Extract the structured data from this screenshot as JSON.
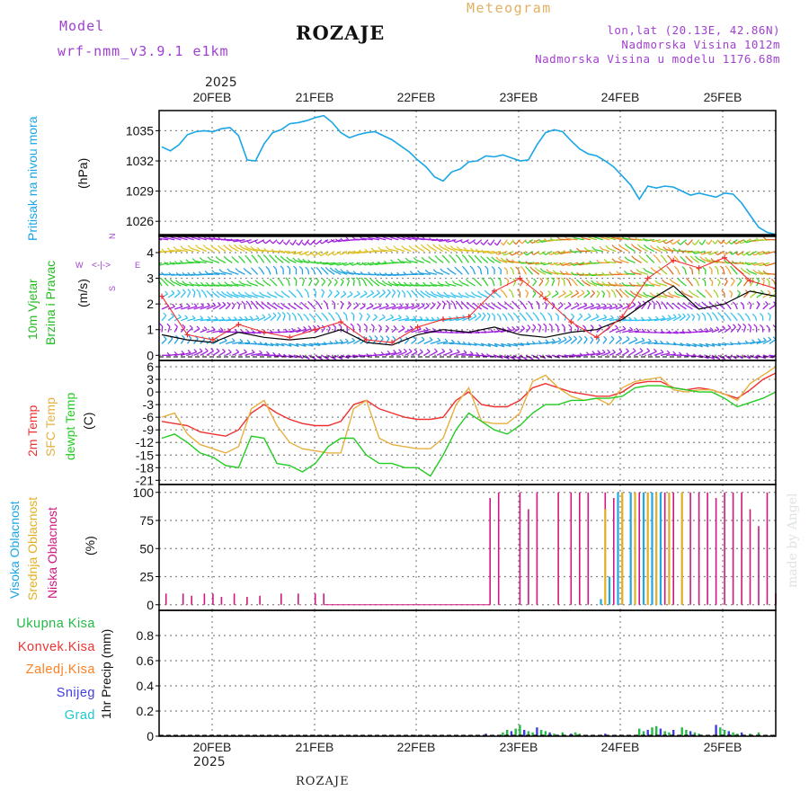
{
  "header": {
    "model_label": "Model",
    "model_name": "wrf-nmm_v3.9.1 e1km",
    "title": "ROZAJE",
    "meteogram": "Meteogram",
    "coords": "lon,lat (20.13E, 42.86N)",
    "altitude": "Nadmorska Visina 1012m",
    "model_altitude": "Nadmorska Visina u modelu 1176.68m"
  },
  "time_axis": {
    "year": "2025",
    "days": [
      "20FEB",
      "21FEB",
      "22FEB",
      "23FEB",
      "24FEB",
      "25FEB"
    ],
    "bottom_year": "2025"
  },
  "footer": {
    "station": "ROZAJE",
    "credit": "made by Angel"
  },
  "panels": {
    "pressure": {
      "label_main": "Pritisak na nivou mora",
      "unit": "(hPa)"
    },
    "wind": {
      "label_line1": "10m Vjetar",
      "label_line2": "Brzina i Pravac",
      "unit": "(m/s)",
      "compass": {
        "n": "N",
        "s": "S",
        "e": "E",
        "w": "W"
      }
    },
    "temp": {
      "label_2m": "2m Temp",
      "label_sfc": "SFC Temp",
      "label_dew": "dewpt Temp",
      "unit": "(C)"
    },
    "cloud": {
      "label_high": "Visoka Oblacnost",
      "label_mid": "Srednja Oblacnost",
      "label_low": "Niska Oblacnost",
      "unit": "(%)"
    },
    "precip": {
      "legend_total": "Ukupna Kisa",
      "legend_conv": "Konvek.Kisa",
      "legend_frz": "Zaledj.Kisa",
      "legend_snow": "Snijeg",
      "legend_grad": "Grad",
      "label": "1hr Precip (mm)"
    }
  },
  "colors": {
    "pressure": "#1aa6e6",
    "temp2m": "#ee3030",
    "sfc": "#e6b040",
    "dew": "#22cc22",
    "cloud_high": "#20a8e0",
    "cloud_mid": "#e0b020",
    "cloud_low": "#d01880",
    "precip_total": "#22bb44",
    "precip_conv": "#ee3333",
    "precip_frz": "#ff8020",
    "precip_snow": "#4040e0",
    "precip_grad": "#20c8d0",
    "wind_gust": "#ee3030",
    "wind_speed": "#000000"
  },
  "chart_data": [
    {
      "type": "line",
      "title": "Pritisak na nivou mora",
      "ylabel": "(hPa)",
      "ylim": [
        1024.5,
        1037
      ],
      "yticks": [
        1026,
        1029,
        1032,
        1035
      ],
      "xlim_hours": [
        0,
        144
      ],
      "series": [
        {
          "name": "Pritisak na nivou mora",
          "x": [
            0,
            2,
            4,
            6,
            8,
            10,
            12,
            14,
            16,
            18,
            20,
            22,
            24,
            26,
            28,
            30,
            32,
            34,
            36,
            38,
            40,
            42,
            44,
            46,
            48,
            50,
            52,
            54,
            56,
            58,
            60,
            62,
            64,
            66,
            68,
            70,
            72,
            74,
            76,
            78,
            80,
            82,
            84,
            86,
            88,
            90,
            92,
            94,
            96,
            98,
            100,
            102,
            104,
            106,
            108,
            110,
            112,
            114,
            116,
            118,
            120,
            122,
            124,
            126,
            128,
            130,
            132,
            134,
            136,
            138,
            140,
            142,
            144
          ],
          "y": [
            1033.4,
            1033.0,
            1033.6,
            1034.6,
            1034.9,
            1035.0,
            1034.9,
            1035.2,
            1035.3,
            1034.5,
            1032.1,
            1032.0,
            1033.7,
            1034.8,
            1035.1,
            1035.7,
            1035.8,
            1036.0,
            1036.3,
            1036.5,
            1035.8,
            1034.8,
            1034.3,
            1034.6,
            1034.8,
            1034.9,
            1034.5,
            1034.1,
            1033.5,
            1032.9,
            1032.1,
            1031.4,
            1030.4,
            1030.0,
            1030.9,
            1031.2,
            1031.9,
            1032.0,
            1032.5,
            1032.4,
            1032.6,
            1032.3,
            1032.0,
            1032.1,
            1033.6,
            1034.8,
            1035.1,
            1034.9,
            1034.0,
            1033.2,
            1032.7,
            1032.5,
            1032.0,
            1031.4,
            1030.5,
            1029.6,
            1028.2,
            1029.5,
            1029.3,
            1029.5,
            1029.4,
            1029.0,
            1028.6,
            1028.8,
            1028.6,
            1028.4,
            1028.8,
            1028.7,
            1027.8,
            1026.6,
            1025.4,
            1024.9,
            1024.7
          ]
        }
      ]
    },
    {
      "type": "line",
      "title": "10m Vjetar Brzina i Pravac",
      "ylabel": "(m/s)",
      "ylim": [
        -0.2,
        4.7
      ],
      "yticks": [
        0,
        1,
        2,
        3,
        4
      ],
      "arrow_rows": [
        0.0,
        0.45,
        0.9,
        1.35,
        1.8,
        2.25,
        2.7,
        3.15,
        3.6,
        4.05,
        4.5
      ],
      "series": [
        {
          "name": "speed",
          "x": [
            0,
            6,
            12,
            18,
            24,
            30,
            36,
            42,
            48,
            54,
            60,
            66,
            72,
            78,
            84,
            90,
            96,
            102,
            108,
            114,
            120,
            126,
            132,
            138,
            144
          ],
          "y": [
            0.8,
            0.6,
            0.5,
            0.9,
            0.7,
            0.6,
            0.7,
            1.0,
            0.5,
            0.4,
            0.8,
            1.0,
            0.9,
            1.1,
            0.8,
            0.7,
            0.9,
            1.0,
            1.4,
            2.1,
            2.7,
            1.8,
            2.0,
            2.5,
            2.3
          ]
        },
        {
          "name": "gust",
          "x": [
            0,
            6,
            12,
            18,
            24,
            30,
            36,
            42,
            48,
            54,
            60,
            66,
            72,
            78,
            84,
            90,
            96,
            102,
            108,
            114,
            120,
            126,
            132,
            138,
            144
          ],
          "y": [
            2.3,
            0.8,
            0.6,
            1.2,
            0.9,
            0.7,
            1.0,
            1.3,
            0.6,
            0.5,
            1.1,
            1.4,
            1.5,
            2.5,
            3.0,
            2.2,
            1.3,
            0.7,
            1.5,
            3.0,
            3.7,
            3.4,
            3.8,
            2.9,
            2.6
          ]
        }
      ]
    },
    {
      "type": "line",
      "title": "2m Temp / SFC Temp / dewpt Temp",
      "ylabel": "(C)",
      "ylim": [
        -22,
        7.5
      ],
      "yticks": [
        6,
        3,
        0,
        -3,
        -6,
        -9,
        -12,
        -15,
        -18,
        -21
      ],
      "series": [
        {
          "name": "2m Temp",
          "x": [
            0,
            3,
            6,
            9,
            12,
            15,
            18,
            21,
            24,
            27,
            30,
            33,
            36,
            39,
            42,
            45,
            48,
            51,
            54,
            57,
            60,
            63,
            66,
            69,
            72,
            75,
            78,
            81,
            84,
            87,
            90,
            93,
            96,
            99,
            102,
            105,
            108,
            111,
            114,
            117,
            120,
            123,
            126,
            129,
            132,
            135,
            138,
            141,
            144
          ],
          "y": [
            -7,
            -7.5,
            -8,
            -9.5,
            -10,
            -10.5,
            -9,
            -5,
            -3,
            -5,
            -6.5,
            -7.5,
            -8,
            -8,
            -7,
            -3,
            -2,
            -4,
            -5,
            -6,
            -6.5,
            -6.5,
            -6,
            -2,
            0,
            -3,
            -3.5,
            -3.5,
            -2,
            1,
            2,
            1,
            0,
            -0.5,
            -1,
            -1,
            0,
            2,
            2.5,
            2.5,
            1,
            0.5,
            1,
            0.5,
            -0.5,
            -1.5,
            0.5,
            3,
            4.5
          ]
        },
        {
          "name": "SFC Temp",
          "x": [
            0,
            3,
            6,
            9,
            12,
            15,
            18,
            21,
            24,
            27,
            30,
            33,
            36,
            39,
            42,
            45,
            48,
            51,
            54,
            57,
            60,
            63,
            66,
            69,
            72,
            75,
            78,
            81,
            84,
            87,
            90,
            93,
            96,
            99,
            102,
            105,
            108,
            111,
            114,
            117,
            120,
            123,
            126,
            129,
            132,
            135,
            138,
            141,
            144
          ],
          "y": [
            -6,
            -5,
            -10,
            -12.5,
            -13.5,
            -14.5,
            -13,
            -4,
            -2,
            -8,
            -12,
            -13.5,
            -14,
            -14.5,
            -14.5,
            -4,
            -2,
            -11,
            -12.5,
            -13,
            -13.5,
            -13.5,
            -11,
            -3,
            1,
            -7,
            -7.5,
            -7.5,
            -5,
            2.5,
            4,
            1,
            -1,
            -2,
            -1.5,
            -3,
            1,
            2.5,
            3,
            3.5,
            0.5,
            0,
            0.5,
            0.5,
            -0.5,
            -2,
            2,
            4,
            6
          ]
        },
        {
          "name": "dewpt Temp",
          "x": [
            0,
            3,
            6,
            9,
            12,
            15,
            18,
            21,
            24,
            27,
            30,
            33,
            36,
            39,
            42,
            45,
            48,
            51,
            54,
            57,
            60,
            63,
            66,
            69,
            72,
            75,
            78,
            81,
            84,
            87,
            90,
            93,
            96,
            99,
            102,
            105,
            108,
            111,
            114,
            117,
            120,
            123,
            126,
            129,
            132,
            135,
            138,
            141,
            144
          ],
          "y": [
            -11,
            -10,
            -12,
            -14.5,
            -15.5,
            -17.5,
            -18,
            -10.5,
            -11,
            -17,
            -17.5,
            -19,
            -17,
            -13,
            -11,
            -11,
            -15,
            -17,
            -17,
            -18,
            -18,
            -20,
            -15,
            -9,
            -5,
            -7,
            -9,
            -10,
            -8,
            -5,
            -3,
            -3,
            -2,
            -2,
            -1.5,
            -1.5,
            -1,
            1,
            1.5,
            1.5,
            1,
            0.5,
            0,
            0,
            -1.5,
            -3.5,
            -2.5,
            -1.5,
            0
          ]
        }
      ]
    },
    {
      "type": "bar",
      "title": "Visoka / Srednja / Niska Oblacnost",
      "ylabel": "(%)",
      "ylim": [
        -5,
        107
      ],
      "yticks": [
        0,
        25,
        50,
        75,
        100
      ],
      "low_bars": [
        [
          1,
          10
        ],
        [
          5,
          10
        ],
        [
          7,
          8
        ],
        [
          10,
          10
        ],
        [
          12,
          10
        ],
        [
          14,
          7
        ],
        [
          17,
          10
        ],
        [
          20,
          7
        ],
        [
          23,
          8
        ],
        [
          28,
          10
        ],
        [
          32,
          10
        ],
        [
          36,
          10
        ],
        [
          38,
          10
        ],
        [
          40,
          0.3
        ],
        [
          50,
          0.3
        ],
        [
          60,
          0.3
        ],
        [
          70,
          0.3
        ],
        [
          77,
          95
        ],
        [
          79,
          100
        ],
        [
          84,
          100
        ],
        [
          86,
          85
        ],
        [
          88,
          100
        ],
        [
          93,
          100
        ],
        [
          96,
          100
        ],
        [
          98,
          100
        ],
        [
          100,
          100
        ],
        [
          104,
          100
        ],
        [
          106,
          95
        ],
        [
          108,
          100
        ],
        [
          110,
          100
        ],
        [
          112,
          100
        ],
        [
          114,
          100
        ],
        [
          116,
          100
        ],
        [
          118,
          100
        ],
        [
          120,
          100
        ],
        [
          122,
          100
        ],
        [
          124,
          100
        ],
        [
          126,
          100
        ],
        [
          128,
          100
        ],
        [
          130,
          95
        ],
        [
          132,
          100
        ],
        [
          134,
          100
        ],
        [
          136,
          100
        ],
        [
          138,
          85
        ],
        [
          140,
          70
        ],
        [
          142,
          100
        ],
        [
          144,
          10
        ]
      ],
      "mid_bars": [
        [
          104,
          85
        ],
        [
          108,
          100
        ],
        [
          111,
          100
        ],
        [
          114,
          100
        ],
        [
          116,
          100
        ],
        [
          119,
          100
        ],
        [
          122,
          100
        ]
      ],
      "high_bars": [
        [
          103,
          5
        ],
        [
          105,
          25
        ],
        [
          107,
          100
        ],
        [
          110,
          100
        ],
        [
          113,
          100
        ],
        [
          115,
          100
        ],
        [
          117,
          100
        ]
      ]
    },
    {
      "type": "bar",
      "title": "1hr Precip (mm)",
      "ylabel": "1hr Precip (mm)",
      "ylim": [
        0,
        1.0
      ],
      "yticks": [
        0,
        0.2,
        0.4,
        0.6,
        0.8
      ],
      "total_bars": [
        [
          76,
          0.02
        ],
        [
          80,
          0.03
        ],
        [
          81,
          0.05
        ],
        [
          82,
          0.04
        ],
        [
          83,
          0.06
        ],
        [
          84,
          0.09
        ],
        [
          85,
          0.05
        ],
        [
          86,
          0.04
        ],
        [
          87,
          0.03
        ],
        [
          88,
          0.07
        ],
        [
          89,
          0.05
        ],
        [
          90,
          0.04
        ],
        [
          91,
          0.03
        ],
        [
          92,
          0.02
        ],
        [
          94,
          0.03
        ],
        [
          96,
          0.02
        ],
        [
          97,
          0.03
        ],
        [
          98,
          0.02
        ],
        [
          104,
          0.02
        ],
        [
          112,
          0.06
        ],
        [
          113,
          0.04
        ],
        [
          114,
          0.05
        ],
        [
          115,
          0.07
        ],
        [
          116,
          0.08
        ],
        [
          117,
          0.06
        ],
        [
          118,
          0.04
        ],
        [
          119,
          0.03
        ],
        [
          120,
          0.05
        ],
        [
          122,
          0.07
        ],
        [
          123,
          0.05
        ],
        [
          124,
          0.04
        ],
        [
          125,
          0.03
        ],
        [
          126,
          0.02
        ],
        [
          130,
          0.09
        ],
        [
          131,
          0.07
        ],
        [
          132,
          0.05
        ],
        [
          133,
          0.04
        ],
        [
          134,
          0.03
        ],
        [
          135,
          0.02
        ],
        [
          136,
          0.03
        ],
        [
          138,
          0.02
        ],
        [
          140,
          0.03
        ]
      ]
    }
  ]
}
